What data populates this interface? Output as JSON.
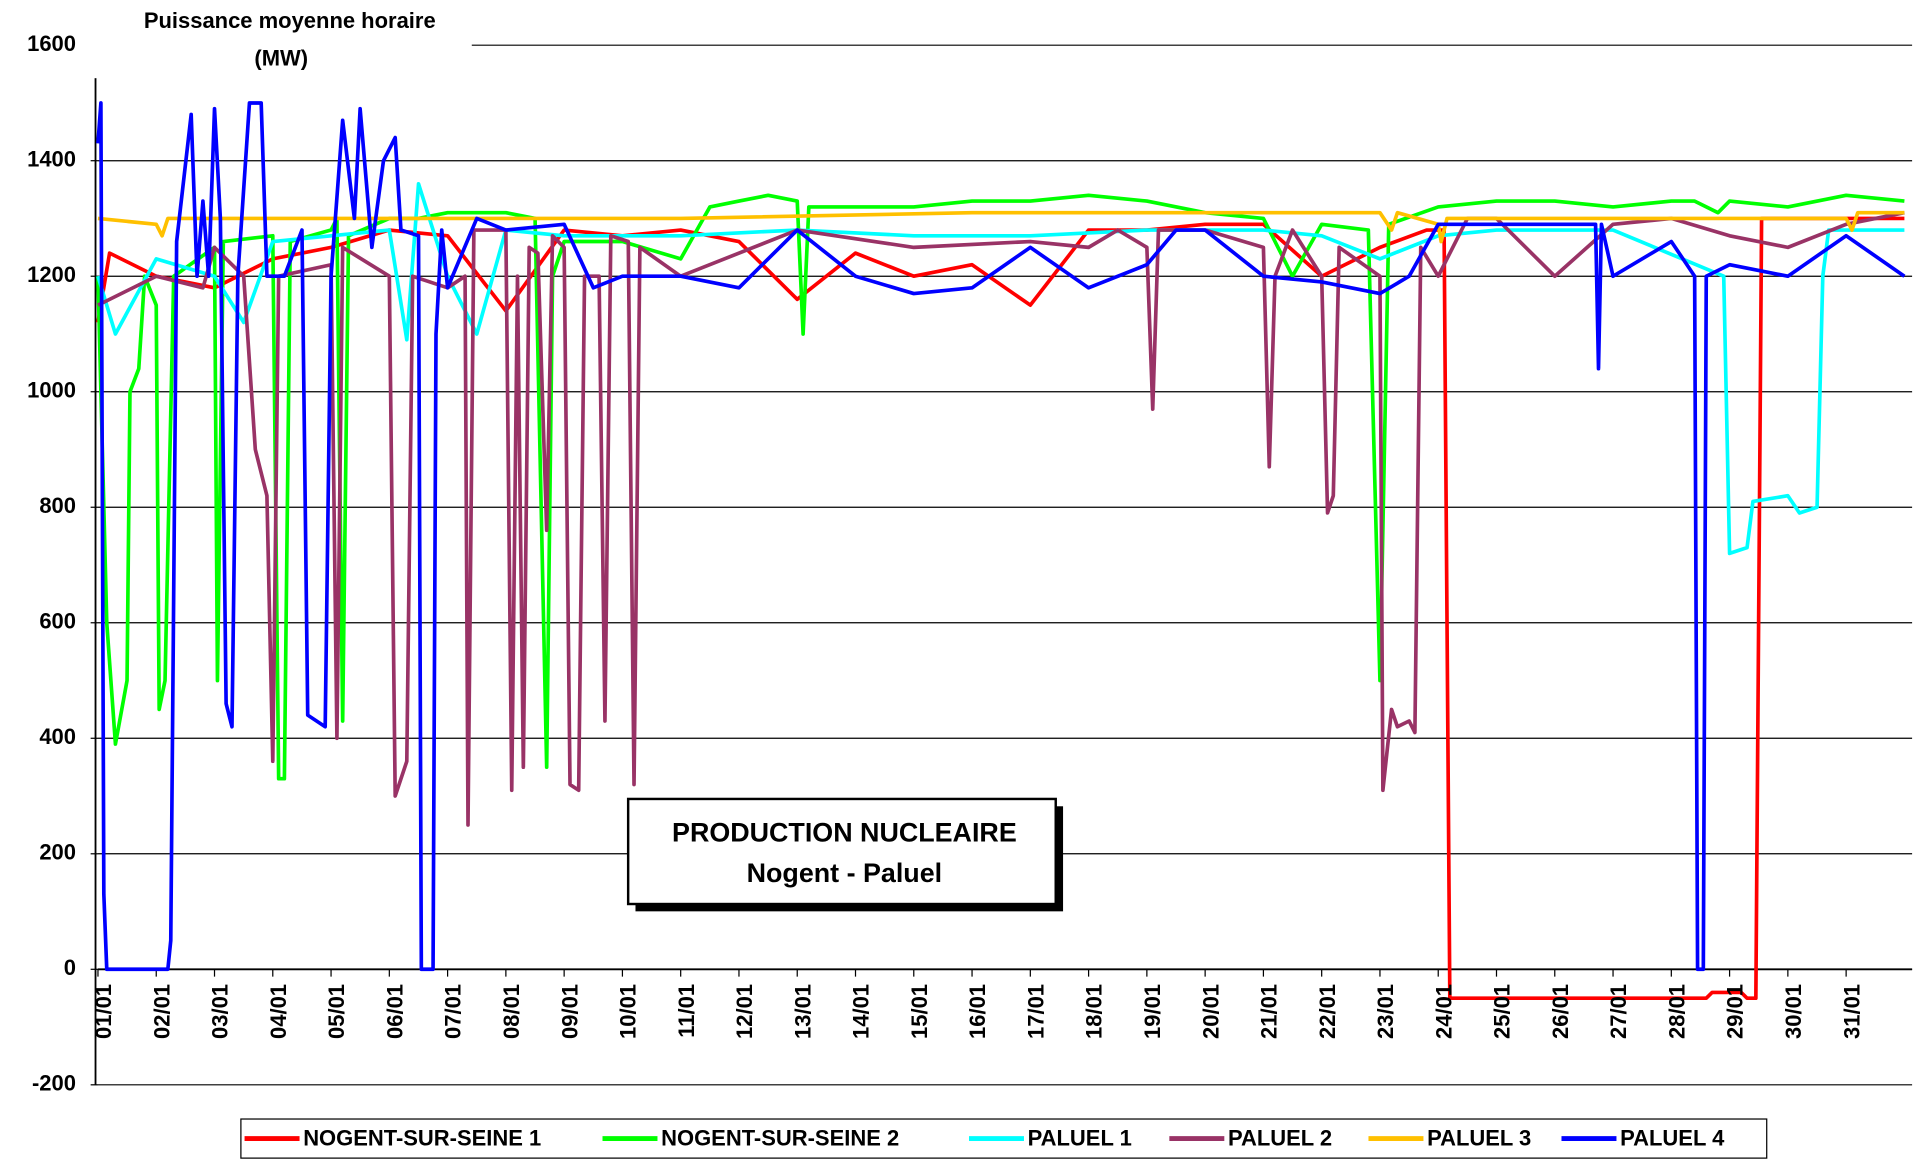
{
  "chart_data": {
    "type": "line",
    "ylabel": [
      "Puissance moyenne horaire",
      "(MW)"
    ],
    "annotation": [
      "PRODUCTION NUCLEAIRE",
      "Nogent - Paluel"
    ],
    "xlim": [
      0,
      31.1
    ],
    "xticks": [
      {
        "value": 0,
        "label": "01/01"
      },
      {
        "value": 1,
        "label": "02/01"
      },
      {
        "value": 2,
        "label": "03/01"
      },
      {
        "value": 3,
        "label": "04/01"
      },
      {
        "value": 4,
        "label": "05/01"
      },
      {
        "value": 5,
        "label": "06/01"
      },
      {
        "value": 6,
        "label": "07/01"
      },
      {
        "value": 7,
        "label": "08/01"
      },
      {
        "value": 8,
        "label": "09/01"
      },
      {
        "value": 9,
        "label": "10/01"
      },
      {
        "value": 10,
        "label": "11/01"
      },
      {
        "value": 11,
        "label": "12/01"
      },
      {
        "value": 12,
        "label": "13/01"
      },
      {
        "value": 13,
        "label": "14/01"
      },
      {
        "value": 14,
        "label": "15/01"
      },
      {
        "value": 15,
        "label": "16/01"
      },
      {
        "value": 16,
        "label": "17/01"
      },
      {
        "value": 17,
        "label": "18/01"
      },
      {
        "value": 18,
        "label": "19/01"
      },
      {
        "value": 19,
        "label": "20/01"
      },
      {
        "value": 20,
        "label": "21/01"
      },
      {
        "value": 21,
        "label": "22/01"
      },
      {
        "value": 22,
        "label": "23/01"
      },
      {
        "value": 23,
        "label": "24/01"
      },
      {
        "value": 24,
        "label": "25/01"
      },
      {
        "value": 25,
        "label": "26/01"
      },
      {
        "value": 26,
        "label": "27/01"
      },
      {
        "value": 27,
        "label": "28/01"
      },
      {
        "value": 28,
        "label": "29/01"
      },
      {
        "value": 29,
        "label": "30/01"
      },
      {
        "value": 30,
        "label": "31/01"
      }
    ],
    "ylim": [
      -200,
      1600
    ],
    "yticks": [
      -200,
      0,
      200,
      400,
      600,
      800,
      1000,
      1200,
      1400,
      1600
    ],
    "grid": true,
    "legend": "bottom",
    "series": [
      {
        "name": "NOGENT-SUR-SEINE 1",
        "color": "#ff0000",
        "x": [
          0,
          0.2,
          1,
          2,
          3,
          4,
          5,
          6,
          7,
          8,
          9,
          10,
          11,
          12,
          13,
          14,
          15,
          16,
          17,
          18,
          19,
          20,
          21,
          22,
          22.8,
          23.1,
          23.2,
          27.6,
          27.7,
          28.2,
          28.3,
          28.45,
          28.55,
          29,
          30,
          31
        ],
        "values": [
          1120,
          1240,
          1200,
          1180,
          1230,
          1250,
          1280,
          1270,
          1140,
          1280,
          1270,
          1280,
          1260,
          1160,
          1240,
          1200,
          1220,
          1150,
          1280,
          1280,
          1290,
          1290,
          1200,
          1250,
          1280,
          1280,
          -50,
          -50,
          -40,
          -40,
          -50,
          -50,
          1300,
          1300,
          1300,
          1300
        ]
      },
      {
        "name": "NOGENT-SUR-SEINE 2",
        "color": "#00ff00",
        "x": [
          0,
          0.15,
          0.3,
          0.5,
          0.55,
          0.7,
          0.8,
          1,
          1.05,
          1.15,
          1.3,
          2,
          2.05,
          2.15,
          3,
          3.1,
          3.2,
          3.3,
          4,
          4.1,
          4.2,
          4.3,
          5,
          5.5,
          6,
          6.5,
          7,
          7.5,
          7.7,
          7.8,
          8,
          9,
          10,
          10.5,
          11,
          11.5,
          12,
          12.1,
          12.2,
          13,
          14,
          15,
          16,
          17,
          18,
          19,
          20,
          20.5,
          21,
          21.8,
          22,
          22.15,
          23,
          24,
          25,
          26,
          27,
          27.4,
          27.8,
          28,
          29,
          30,
          31
        ],
        "values": [
          1200,
          600,
          390,
          500,
          1000,
          1040,
          1200,
          1150,
          450,
          500,
          1200,
          1250,
          500,
          1260,
          1270,
          330,
          330,
          1260,
          1280,
          1300,
          430,
          1270,
          1300,
          1300,
          1310,
          1310,
          1310,
          1300,
          350,
          1200,
          1260,
          1260,
          1230,
          1320,
          1330,
          1340,
          1330,
          1100,
          1320,
          1320,
          1320,
          1330,
          1330,
          1340,
          1330,
          1310,
          1300,
          1200,
          1290,
          1280,
          500,
          1290,
          1320,
          1330,
          1330,
          1320,
          1330,
          1330,
          1310,
          1330,
          1320,
          1340,
          1330
        ]
      },
      {
        "name": "PALUEL 1",
        "color": "#00ffff",
        "x": [
          0,
          0.3,
          1,
          2,
          2.5,
          3,
          4,
          5,
          5.3,
          5.5,
          6,
          6.5,
          7,
          8,
          10,
          12,
          14,
          16,
          18,
          20,
          21,
          22,
          23,
          24,
          26,
          27.9,
          28,
          28.3,
          28.4,
          29,
          29.2,
          29.5,
          29.6,
          29.7,
          31
        ],
        "values": [
          1200,
          1100,
          1230,
          1200,
          1120,
          1260,
          1270,
          1280,
          1090,
          1360,
          1200,
          1100,
          1280,
          1270,
          1270,
          1280,
          1270,
          1270,
          1280,
          1280,
          1270,
          1230,
          1270,
          1280,
          1280,
          1200,
          720,
          730,
          810,
          820,
          790,
          800,
          1200,
          1280,
          1280
        ]
      },
      {
        "name": "PALUEL 2",
        "color": "#993366",
        "x": [
          0,
          1,
          1.8,
          2,
          2.5,
          2.7,
          2.9,
          3,
          3.1,
          4,
          4.1,
          4.2,
          5,
          5.1,
          5.3,
          5.4,
          6,
          6.3,
          6.35,
          6.45,
          7,
          7.1,
          7.2,
          7.3,
          7.4,
          7.55,
          7.7,
          7.8,
          8,
          8.1,
          8.25,
          8.35,
          8.6,
          8.7,
          8.8,
          9.1,
          9.2,
          9.3,
          10,
          12,
          14,
          16,
          17,
          17.5,
          18,
          18.1,
          18.2,
          19,
          20,
          20.1,
          20.2,
          20.5,
          21,
          21.1,
          21.2,
          21.3,
          22,
          22.05,
          22.2,
          22.3,
          22.5,
          22.6,
          22.7,
          23,
          23.5,
          24,
          25,
          26,
          27,
          28,
          29,
          30,
          31
        ],
        "values": [
          1150,
          1200,
          1180,
          1250,
          1200,
          900,
          820,
          360,
          1200,
          1220,
          400,
          1250,
          1200,
          300,
          360,
          1200,
          1180,
          1200,
          250,
          1280,
          1280,
          310,
          1200,
          350,
          1250,
          1240,
          760,
          1270,
          1250,
          320,
          310,
          1200,
          1200,
          430,
          1270,
          1260,
          320,
          1250,
          1200,
          1280,
          1250,
          1260,
          1250,
          1280,
          1250,
          970,
          1280,
          1280,
          1250,
          870,
          1200,
          1280,
          1200,
          790,
          820,
          1250,
          1200,
          310,
          450,
          420,
          430,
          410,
          1250,
          1200,
          1300,
          1300,
          1200,
          1290,
          1300,
          1270,
          1250,
          1290,
          1310
        ]
      },
      {
        "name": "PALUEL 3",
        "color": "#ffc000",
        "x": [
          0,
          1,
          1.1,
          1.2,
          5,
          10,
          15,
          20,
          22,
          22.2,
          22.3,
          23,
          23.05,
          23.15,
          25,
          30,
          30.1,
          30.2,
          31
        ],
        "values": [
          1300,
          1290,
          1270,
          1300,
          1300,
          1300,
          1310,
          1310,
          1310,
          1280,
          1310,
          1290,
          1260,
          1300,
          1300,
          1300,
          1280,
          1310,
          1310
        ]
      },
      {
        "name": "PALUEL 4",
        "color": "#0000ff",
        "x": [
          0,
          0.05,
          0.1,
          0.15,
          1.2,
          1.25,
          1.35,
          1.6,
          1.7,
          1.8,
          1.9,
          2,
          2.1,
          2.2,
          2.3,
          2.4,
          2.6,
          2.8,
          2.9,
          3.2,
          3.5,
          3.6,
          3.9,
          4,
          4.2,
          4.4,
          4.5,
          4.7,
          4.9,
          5.1,
          5.2,
          5.5,
          5.55,
          5.75,
          5.8,
          5.9,
          6,
          6.5,
          7,
          8,
          8.5,
          9,
          10,
          11,
          12,
          13,
          14,
          15,
          16,
          17,
          18,
          18.5,
          19,
          20,
          21,
          22,
          22.5,
          23,
          24,
          25,
          25.7,
          25.75,
          25.8,
          26,
          27,
          27.4,
          27.45,
          27.55,
          27.6,
          28,
          29,
          30,
          31
        ],
        "values": [
          1430,
          1500,
          130,
          0,
          0,
          50,
          1260,
          1480,
          1200,
          1330,
          1200,
          1490,
          1300,
          460,
          420,
          1200,
          1500,
          1500,
          1200,
          1200,
          1280,
          440,
          420,
          1200,
          1470,
          1300,
          1490,
          1250,
          1400,
          1440,
          1280,
          1270,
          0,
          0,
          1100,
          1280,
          1180,
          1300,
          1280,
          1290,
          1180,
          1200,
          1200,
          1180,
          1280,
          1200,
          1170,
          1180,
          1250,
          1180,
          1220,
          1280,
          1280,
          1200,
          1190,
          1170,
          1200,
          1290,
          1290,
          1290,
          1290,
          1040,
          1290,
          1200,
          1260,
          1200,
          0,
          0,
          1200,
          1220,
          1200,
          1270,
          1200
        ]
      }
    ]
  }
}
